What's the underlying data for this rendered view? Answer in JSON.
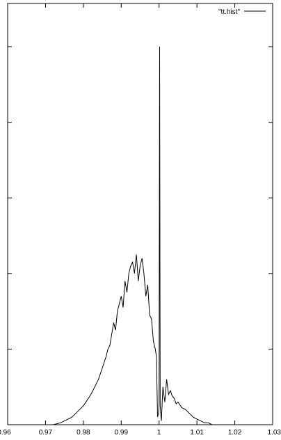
{
  "chart_data": {
    "type": "line",
    "title": "",
    "xlabel": "",
    "ylabel": "",
    "xlim": [
      0.96,
      1.03
    ],
    "ylim": [
      0,
      1
    ],
    "grid": false,
    "legend_position": "top-right",
    "x_ticks": [
      0.96,
      0.97,
      0.98,
      0.99,
      1.0,
      1.01,
      1.02,
      1.03
    ],
    "x_tick_labels": [
      "0.96",
      "0.97",
      "0.98",
      "0.99",
      "1",
      "1.01",
      "1.02",
      "1.03"
    ],
    "y_ticks": [
      0,
      0.2,
      0.4,
      0.6,
      0.8,
      1.0
    ],
    "series": [
      {
        "name": "\"tt.hist\"",
        "color": "#000000",
        "x": [
          0.967,
          0.97,
          0.972,
          0.974,
          0.975,
          0.976,
          0.977,
          0.978,
          0.979,
          0.98,
          0.981,
          0.982,
          0.983,
          0.984,
          0.985,
          0.9855,
          0.986,
          0.9865,
          0.987,
          0.9875,
          0.988,
          0.9885,
          0.989,
          0.9895,
          0.99,
          0.9905,
          0.991,
          0.9915,
          0.992,
          0.9925,
          0.993,
          0.9935,
          0.994,
          0.9945,
          0.995,
          0.9955,
          0.996,
          0.9965,
          0.997,
          0.9975,
          0.998,
          0.9985,
          0.999,
          0.9993,
          0.9996,
          0.99985,
          1.0,
          1.00015,
          1.0003,
          1.0006,
          1.001,
          1.0015,
          1.002,
          1.0025,
          1.003,
          1.0035,
          1.004,
          1.0045,
          1.005,
          1.006,
          1.007,
          1.008,
          1.009,
          1.01,
          1.011,
          1.012,
          1.013,
          1.014,
          1.015,
          1.017,
          1.019,
          1.021
        ],
        "y": [
          0.0,
          0.0,
          0.0,
          0.005,
          0.01,
          0.015,
          0.02,
          0.03,
          0.04,
          0.05,
          0.065,
          0.08,
          0.1,
          0.12,
          0.15,
          0.165,
          0.18,
          0.2,
          0.21,
          0.24,
          0.27,
          0.25,
          0.3,
          0.32,
          0.34,
          0.31,
          0.38,
          0.35,
          0.4,
          0.42,
          0.43,
          0.4,
          0.45,
          0.38,
          0.42,
          0.44,
          0.4,
          0.34,
          0.37,
          0.29,
          0.28,
          0.22,
          0.2,
          0.18,
          0.02,
          0.03,
          0.05,
          1.0,
          0.05,
          0.01,
          0.1,
          0.06,
          0.12,
          0.08,
          0.09,
          0.075,
          0.07,
          0.055,
          0.06,
          0.045,
          0.04,
          0.03,
          0.02,
          0.015,
          0.01,
          0.005,
          0.005,
          0.0,
          0.0,
          0.0,
          0.0,
          0.0
        ]
      }
    ]
  }
}
